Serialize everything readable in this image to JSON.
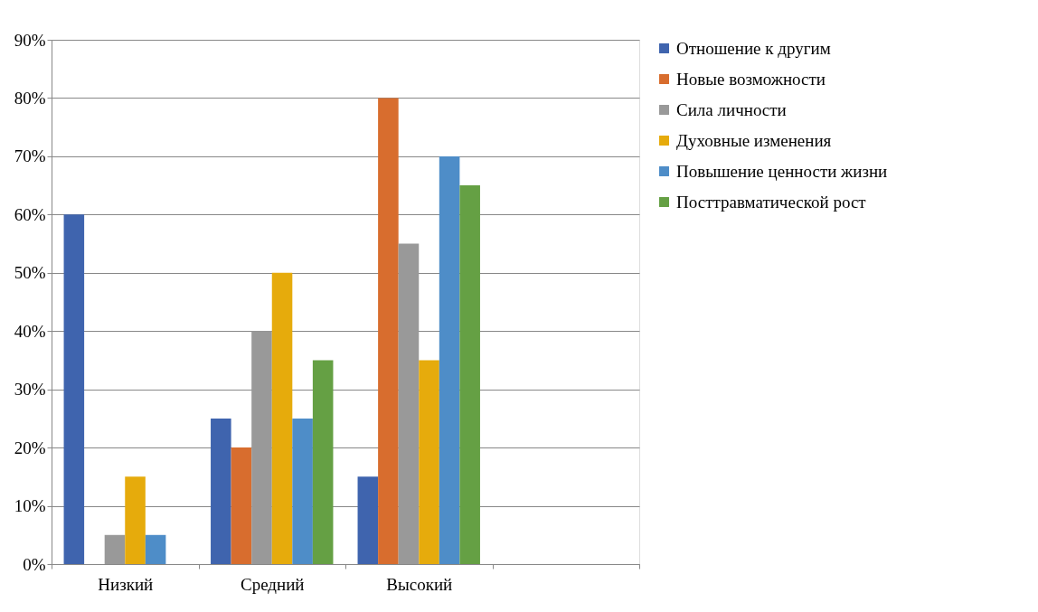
{
  "chart_data": {
    "type": "bar",
    "categories": [
      "Низкий",
      "Средний",
      "Высокий",
      null
    ],
    "series": [
      {
        "name": "Отношение к другим",
        "color": "#3f64ae",
        "values": [
          60,
          25,
          15,
          null
        ]
      },
      {
        "name": "Новые возможности",
        "color": "#d86d2e",
        "values": [
          null,
          20,
          80,
          null
        ]
      },
      {
        "name": "Сила личности",
        "color": "#999999",
        "values": [
          5,
          40,
          55,
          null
        ]
      },
      {
        "name": "Духовные изменения",
        "color": "#e6ab0c",
        "values": [
          15,
          50,
          35,
          null
        ]
      },
      {
        "name": "Повышение ценности жизни",
        "color": "#4e8dc8",
        "values": [
          5,
          25,
          70,
          null
        ]
      },
      {
        "name": "Посттравматической рост",
        "color": "#65a044",
        "values": [
          null,
          35,
          65,
          null
        ]
      }
    ],
    "ylim": [
      0,
      90
    ],
    "yticks": [
      {
        "value": 0,
        "label": "0%"
      },
      {
        "value": 10,
        "label": "10%"
      },
      {
        "value": 20,
        "label": "20%"
      },
      {
        "value": 30,
        "label": "30%"
      },
      {
        "value": 40,
        "label": "40%"
      },
      {
        "value": 50,
        "label": "50%"
      },
      {
        "value": 60,
        "label": "60%"
      },
      {
        "value": 70,
        "label": "70%"
      },
      {
        "value": 80,
        "label": "80%"
      },
      {
        "value": 90,
        "label": "90%"
      }
    ],
    "grid": "y",
    "legend": "right"
  }
}
